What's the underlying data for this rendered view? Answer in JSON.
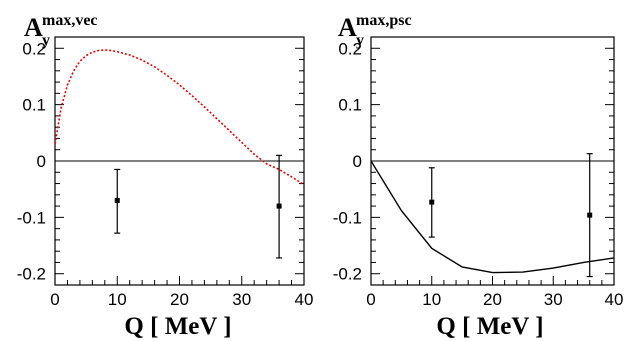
{
  "chart_data": [
    {
      "type": "line",
      "ylabel": {
        "main": "A",
        "sub": "y",
        "sup": "max,vec"
      },
      "xlabel": {
        "variable": "Q",
        "unit": "[ MeV ]"
      },
      "xlim": [
        0,
        40
      ],
      "ylim": [
        -0.22,
        0.22
      ],
      "x_ticks": [
        0,
        10,
        20,
        30,
        40
      ],
      "x_tick_labels": [
        "0",
        "10",
        "20",
        "30",
        "40"
      ],
      "y_ticks": [
        0.2,
        0.1,
        0,
        -0.1,
        -0.2
      ],
      "y_tick_labels": [
        "0.2",
        "0.1",
        "0",
        "-0.1",
        "-0.2"
      ],
      "reference_line_y": 0,
      "series": [
        {
          "style": "dotted",
          "color": "#e00000",
          "x": [
            0,
            1,
            2,
            3,
            4,
            5,
            6,
            7,
            8,
            9,
            10,
            12,
            14,
            16,
            18,
            20,
            22,
            24,
            26,
            28,
            30,
            32,
            34,
            36,
            38,
            40
          ],
          "y": [
            0.03,
            0.095,
            0.135,
            0.16,
            0.177,
            0.187,
            0.193,
            0.196,
            0.197,
            0.196,
            0.194,
            0.188,
            0.179,
            0.167,
            0.152,
            0.135,
            0.116,
            0.096,
            0.075,
            0.054,
            0.033,
            0.012,
            -0.005,
            -0.015,
            -0.028,
            -0.042
          ]
        }
      ],
      "data_points": [
        {
          "x": 10,
          "y": -0.07,
          "err_low": -0.128,
          "err_high": -0.015
        },
        {
          "x": 36,
          "y": -0.08,
          "err_low": -0.172,
          "err_high": 0.01
        }
      ]
    },
    {
      "type": "line",
      "ylabel": {
        "main": "A",
        "sub": "y",
        "sup": "max,psc"
      },
      "xlabel": {
        "variable": "Q",
        "unit": "[ MeV ]"
      },
      "xlim": [
        0,
        40
      ],
      "ylim": [
        -0.22,
        0.22
      ],
      "x_ticks": [
        0,
        10,
        20,
        30,
        40
      ],
      "x_tick_labels": [
        "0",
        "10",
        "20",
        "30",
        "40"
      ],
      "y_ticks": [
        0.2,
        0.1,
        0,
        -0.1,
        -0.2
      ],
      "y_tick_labels": [
        "0.2",
        "0.1",
        "0",
        "-0.1",
        "-0.2"
      ],
      "reference_line_y": 0,
      "series": [
        {
          "style": "solid",
          "color": "#000000",
          "x": [
            0,
            5,
            10,
            15,
            20,
            25,
            30,
            35,
            40
          ],
          "y": [
            0,
            -0.088,
            -0.155,
            -0.188,
            -0.198,
            -0.197,
            -0.19,
            -0.18,
            -0.172
          ]
        }
      ],
      "data_points": [
        {
          "x": 10,
          "y": -0.073,
          "err_low": -0.135,
          "err_high": -0.012
        },
        {
          "x": 36,
          "y": -0.096,
          "err_low": -0.205,
          "err_high": 0.013
        }
      ]
    }
  ]
}
